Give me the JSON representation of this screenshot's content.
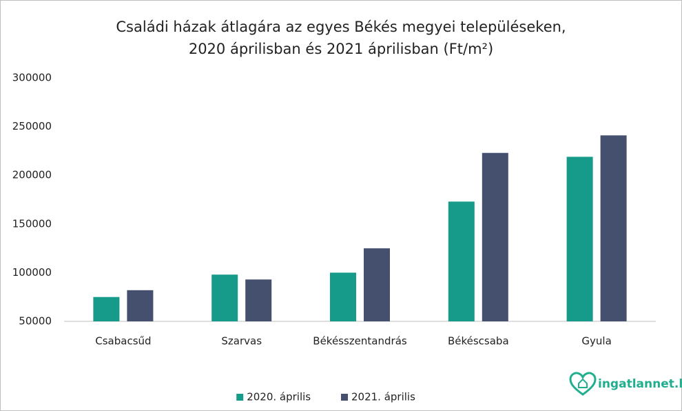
{
  "chart_data": {
    "type": "bar",
    "title": [
      "Családi házak átlagára az egyes Békés megyei településeken,",
      "2020 áprilisban és 2021 áprilisban (Ft/m²)"
    ],
    "categories": [
      "Csabacsűd",
      "Szarvas",
      "Békésszentandrás",
      "Békéscsaba",
      "Gyula"
    ],
    "series": [
      {
        "name": "2020. április",
        "color": "#169b8a",
        "values": [
          75000,
          98000,
          100000,
          173000,
          219000
        ]
      },
      {
        "name": "2021. április",
        "color": "#44506e",
        "values": [
          82000,
          93000,
          125000,
          223000,
          241000
        ]
      }
    ],
    "ylim": [
      50000,
      300000
    ],
    "yticks": [
      50000,
      100000,
      150000,
      200000,
      250000,
      300000
    ],
    "grid": false,
    "legend": "bottom"
  },
  "logo": {
    "text": "ingatlannet.hu"
  }
}
